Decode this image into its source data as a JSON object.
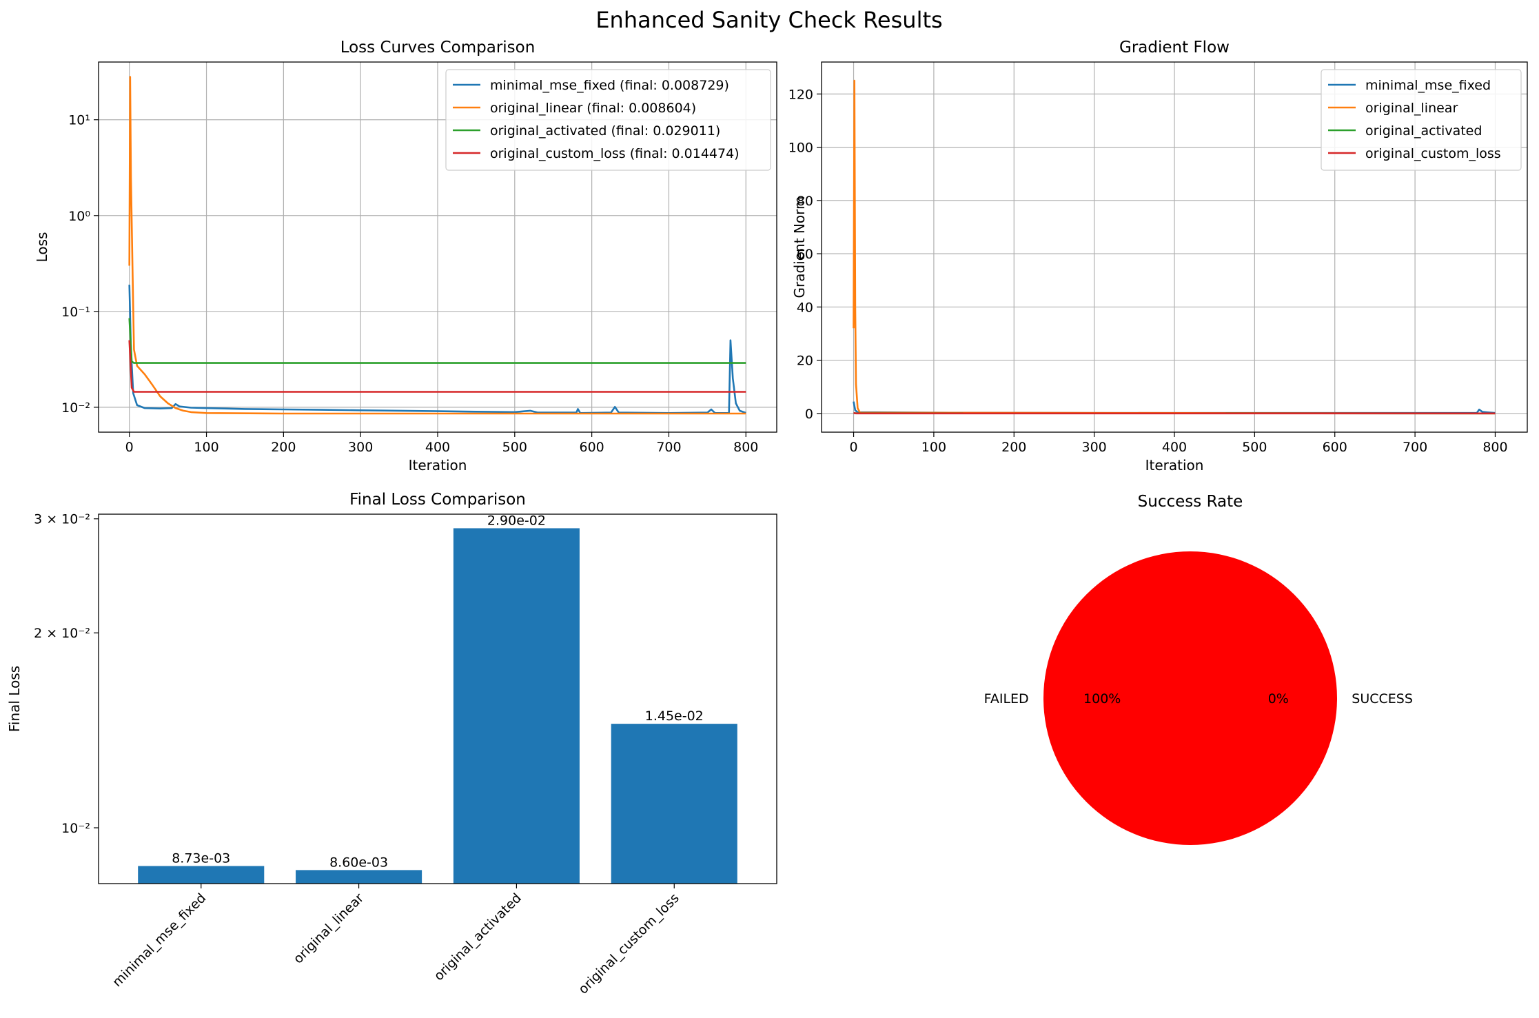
{
  "figure": {
    "title": "Enhanced Sanity Check Results"
  },
  "colors": {
    "blue": "#1f77b4",
    "orange": "#ff7f0e",
    "green": "#2ca02c",
    "red": "#d62728",
    "pie_failed": "#ff0000",
    "grid": "#b0b0b0"
  },
  "chart_data": [
    {
      "id": "loss_curves",
      "type": "line",
      "title": "Loss Curves Comparison",
      "xlabel": "Iteration",
      "ylabel": "Loss",
      "yscale": "log",
      "xlim": [
        -40,
        840
      ],
      "ylim": [
        0.0055,
        40
      ],
      "xticks": [
        0,
        100,
        200,
        300,
        400,
        500,
        600,
        700,
        800
      ],
      "yticks": [
        0.01,
        0.1,
        1,
        10
      ],
      "ytick_labels": [
        "10⁻²",
        "10⁻¹",
        "10⁰",
        "10¹"
      ],
      "grid": true,
      "legend_position": "upper right",
      "series": [
        {
          "name": "minimal_mse_fixed (final: 0.008729)",
          "color_key": "blue",
          "points": [
            [
              0,
              0.19
            ],
            [
              2,
              0.04
            ],
            [
              5,
              0.014
            ],
            [
              10,
              0.0105
            ],
            [
              20,
              0.0098
            ],
            [
              40,
              0.0097
            ],
            [
              55,
              0.0098
            ],
            [
              60,
              0.0108
            ],
            [
              65,
              0.0102
            ],
            [
              80,
              0.0099
            ],
            [
              100,
              0.0098
            ],
            [
              150,
              0.0096
            ],
            [
              200,
              0.0095
            ],
            [
              250,
              0.0094
            ],
            [
              300,
              0.0093
            ],
            [
              350,
              0.0092
            ],
            [
              400,
              0.0091
            ],
            [
              450,
              0.009
            ],
            [
              500,
              0.0089
            ],
            [
              520,
              0.0092
            ],
            [
              530,
              0.0088
            ],
            [
              580,
              0.0088
            ],
            [
              582,
              0.0096
            ],
            [
              585,
              0.0087
            ],
            [
              625,
              0.0088
            ],
            [
              630,
              0.0101
            ],
            [
              635,
              0.0088
            ],
            [
              700,
              0.0087
            ],
            [
              750,
              0.0088
            ],
            [
              755,
              0.0095
            ],
            [
              760,
              0.0087
            ],
            [
              778,
              0.0087
            ],
            [
              780,
              0.05
            ],
            [
              783,
              0.02
            ],
            [
              787,
              0.011
            ],
            [
              792,
              0.0092
            ],
            [
              800,
              0.00873
            ]
          ]
        },
        {
          "name": "original_linear (final: 0.008604)",
          "color_key": "orange",
          "points": [
            [
              0,
              0.3
            ],
            [
              1,
              28
            ],
            [
              2,
              2.5
            ],
            [
              4,
              0.3
            ],
            [
              6,
              0.04
            ],
            [
              10,
              0.027
            ],
            [
              20,
              0.022
            ],
            [
              30,
              0.017
            ],
            [
              40,
              0.013
            ],
            [
              50,
              0.011
            ],
            [
              60,
              0.0098
            ],
            [
              70,
              0.0092
            ],
            [
              80,
              0.0089
            ],
            [
              100,
              0.0087
            ],
            [
              200,
              0.0086
            ],
            [
              400,
              0.0086
            ],
            [
              600,
              0.0086
            ],
            [
              800,
              0.0086
            ]
          ]
        },
        {
          "name": "original_activated (final: 0.029011)",
          "color_key": "green",
          "points": [
            [
              0,
              0.085
            ],
            [
              3,
              0.03
            ],
            [
              6,
              0.029
            ],
            [
              800,
              0.029
            ]
          ]
        },
        {
          "name": "original_custom_loss (final: 0.014474)",
          "color_key": "red",
          "points": [
            [
              0,
              0.05
            ],
            [
              3,
              0.016
            ],
            [
              6,
              0.0145
            ],
            [
              800,
              0.0145
            ]
          ]
        }
      ]
    },
    {
      "id": "gradient_flow",
      "type": "line",
      "title": "Gradient Flow",
      "xlabel": "Iteration",
      "ylabel": "Gradient Norm",
      "xlim": [
        -40,
        840
      ],
      "ylim": [
        -7,
        132
      ],
      "xticks": [
        0,
        100,
        200,
        300,
        400,
        500,
        600,
        700,
        800
      ],
      "yticks": [
        0,
        20,
        40,
        60,
        80,
        100,
        120
      ],
      "grid": true,
      "legend_position": "upper right",
      "series": [
        {
          "name": "minimal_mse_fixed",
          "color_key": "blue",
          "points": [
            [
              0,
              4.5
            ],
            [
              2,
              1.2
            ],
            [
              5,
              0.5
            ],
            [
              60,
              0.4
            ],
            [
              120,
              0.3
            ],
            [
              300,
              0.2
            ],
            [
              600,
              0.2
            ],
            [
              777,
              0.2
            ],
            [
              780,
              1.5
            ],
            [
              784,
              0.6
            ],
            [
              800,
              0.2
            ]
          ]
        },
        {
          "name": "original_linear",
          "color_key": "orange",
          "points": [
            [
              0,
              32
            ],
            [
              1,
              125
            ],
            [
              2,
              40
            ],
            [
              3,
              11
            ],
            [
              5,
              2
            ],
            [
              8,
              0.3
            ],
            [
              800,
              0.05
            ]
          ]
        },
        {
          "name": "original_activated",
          "color_key": "green",
          "points": [
            [
              0,
              0.1
            ],
            [
              800,
              0.05
            ]
          ]
        },
        {
          "name": "original_custom_loss",
          "color_key": "red",
          "points": [
            [
              0,
              0.2
            ],
            [
              3,
              0.05
            ],
            [
              800,
              0.05
            ]
          ]
        }
      ]
    },
    {
      "id": "final_loss",
      "type": "bar",
      "title": "Final Loss Comparison",
      "ylabel": "Final Loss",
      "yscale": "log",
      "ylim": [
        0.0082,
        0.0305
      ],
      "yticks": [
        0.01,
        0.02,
        0.03
      ],
      "ytick_labels": [
        "10⁻²",
        "2 × 10⁻²",
        "3 × 10⁻²"
      ],
      "categories": [
        "minimal_mse_fixed",
        "original_linear",
        "original_activated",
        "original_custom_loss"
      ],
      "values": [
        0.008729,
        0.008604,
        0.029011,
        0.014474
      ],
      "data_labels": [
        "8.73e-03",
        "8.60e-03",
        "2.90e-02",
        "1.45e-02"
      ],
      "color_key": "blue"
    },
    {
      "id": "success_rate",
      "type": "pie",
      "title": "Success Rate",
      "labels": [
        "FAILED",
        "SUCCESS"
      ],
      "values": [
        100,
        0
      ],
      "pct_labels": [
        "100%",
        "0%"
      ],
      "color_key": "pie_failed"
    }
  ]
}
